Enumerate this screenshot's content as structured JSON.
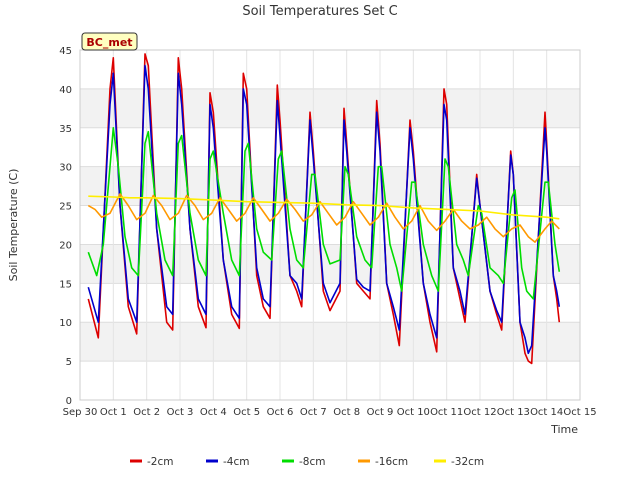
{
  "chart_data": {
    "type": "line",
    "title": "Soil Temperatures Set C",
    "xlabel": "Time",
    "ylabel": "Soil Temperature (C)",
    "badge": "BC_met",
    "xlim": [
      0,
      15
    ],
    "ylim": [
      0,
      45
    ],
    "x_ticks": [
      {
        "v": 0,
        "label": "Sep 30"
      },
      {
        "v": 1,
        "label": "Oct 1"
      },
      {
        "v": 2,
        "label": "Oct 2"
      },
      {
        "v": 3,
        "label": "Oct 3"
      },
      {
        "v": 4,
        "label": "Oct 4"
      },
      {
        "v": 5,
        "label": "Oct 5"
      },
      {
        "v": 6,
        "label": "Oct 6"
      },
      {
        "v": 7,
        "label": "Oct 7"
      },
      {
        "v": 8,
        "label": "Oct 8"
      },
      {
        "v": 9,
        "label": "Oct 9"
      },
      {
        "v": 10,
        "label": "Oct 10"
      },
      {
        "v": 11,
        "label": "Oct 11"
      },
      {
        "v": 12,
        "label": "Oct 12"
      },
      {
        "v": 13,
        "label": "Oct 13"
      },
      {
        "v": 14,
        "label": "Oct 14"
      },
      {
        "v": 15,
        "label": "Oct 15"
      }
    ],
    "y_ticks": [
      0,
      5,
      10,
      15,
      20,
      25,
      30,
      35,
      40,
      45
    ],
    "grid": true,
    "legend_position": "bottom",
    "series": [
      {
        "name": "-2cm",
        "color": "#dd0000",
        "points": [
          [
            0.25,
            13
          ],
          [
            0.55,
            8
          ],
          [
            0.9,
            40
          ],
          [
            1.0,
            44
          ],
          [
            1.2,
            25
          ],
          [
            1.45,
            12
          ],
          [
            1.7,
            8.5
          ],
          [
            1.95,
            44.5
          ],
          [
            2.05,
            43
          ],
          [
            2.3,
            22
          ],
          [
            2.6,
            10
          ],
          [
            2.78,
            9
          ],
          [
            2.95,
            44
          ],
          [
            3.05,
            40
          ],
          [
            3.3,
            22
          ],
          [
            3.55,
            12
          ],
          [
            3.78,
            9.3
          ],
          [
            3.9,
            39.5
          ],
          [
            4.0,
            37
          ],
          [
            4.3,
            18
          ],
          [
            4.55,
            11
          ],
          [
            4.78,
            9.2
          ],
          [
            4.9,
            42
          ],
          [
            5.0,
            40
          ],
          [
            5.3,
            16
          ],
          [
            5.5,
            12
          ],
          [
            5.7,
            10.5
          ],
          [
            5.92,
            40.5
          ],
          [
            6.0,
            36
          ],
          [
            6.3,
            16
          ],
          [
            6.5,
            14
          ],
          [
            6.65,
            12
          ],
          [
            6.9,
            37
          ],
          [
            7.0,
            32
          ],
          [
            7.3,
            14
          ],
          [
            7.5,
            11.5
          ],
          [
            7.8,
            14
          ],
          [
            7.92,
            37.5
          ],
          [
            8.0,
            33
          ],
          [
            8.3,
            15
          ],
          [
            8.5,
            14
          ],
          [
            8.7,
            13
          ],
          [
            8.9,
            38.5
          ],
          [
            9.0,
            33
          ],
          [
            9.2,
            15
          ],
          [
            9.4,
            11
          ],
          [
            9.58,
            7
          ],
          [
            9.9,
            36
          ],
          [
            10.0,
            32
          ],
          [
            10.3,
            15
          ],
          [
            10.5,
            10
          ],
          [
            10.7,
            6.2
          ],
          [
            10.92,
            40
          ],
          [
            11.0,
            38
          ],
          [
            11.2,
            17
          ],
          [
            11.4,
            13
          ],
          [
            11.55,
            10
          ],
          [
            11.9,
            29
          ],
          [
            12.0,
            25
          ],
          [
            12.3,
            14
          ],
          [
            12.5,
            11
          ],
          [
            12.65,
            9
          ],
          [
            12.92,
            32
          ],
          [
            13.0,
            29
          ],
          [
            13.2,
            10
          ],
          [
            13.35,
            6
          ],
          [
            13.45,
            5
          ],
          [
            13.55,
            4.7
          ],
          [
            13.95,
            37
          ],
          [
            14.0,
            33
          ],
          [
            14.2,
            16
          ],
          [
            14.3,
            13
          ],
          [
            14.38,
            10
          ]
        ]
      },
      {
        "name": "-4cm",
        "color": "#0000cc",
        "points": [
          [
            0.25,
            14.5
          ],
          [
            0.55,
            10
          ],
          [
            0.9,
            38
          ],
          [
            1.0,
            42
          ],
          [
            1.2,
            25
          ],
          [
            1.45,
            13
          ],
          [
            1.7,
            10
          ],
          [
            1.95,
            43
          ],
          [
            2.05,
            40
          ],
          [
            2.3,
            22
          ],
          [
            2.6,
            12
          ],
          [
            2.78,
            11
          ],
          [
            2.95,
            42
          ],
          [
            3.05,
            38
          ],
          [
            3.3,
            22
          ],
          [
            3.55,
            13
          ],
          [
            3.78,
            11
          ],
          [
            3.9,
            38
          ],
          [
            4.0,
            35
          ],
          [
            4.3,
            18
          ],
          [
            4.55,
            12
          ],
          [
            4.78,
            10.5
          ],
          [
            4.9,
            40
          ],
          [
            5.0,
            38
          ],
          [
            5.3,
            17
          ],
          [
            5.5,
            13
          ],
          [
            5.7,
            12
          ],
          [
            5.92,
            38.5
          ],
          [
            6.0,
            34
          ],
          [
            6.3,
            16
          ],
          [
            6.5,
            15
          ],
          [
            6.65,
            13
          ],
          [
            6.9,
            36
          ],
          [
            7.0,
            31
          ],
          [
            7.3,
            15
          ],
          [
            7.5,
            12.5
          ],
          [
            7.8,
            15
          ],
          [
            7.92,
            36
          ],
          [
            8.0,
            32
          ],
          [
            8.3,
            15.5
          ],
          [
            8.5,
            14.5
          ],
          [
            8.7,
            14
          ],
          [
            8.9,
            37
          ],
          [
            9.0,
            32
          ],
          [
            9.2,
            15
          ],
          [
            9.4,
            12
          ],
          [
            9.58,
            9
          ],
          [
            9.9,
            35
          ],
          [
            10.0,
            31
          ],
          [
            10.3,
            15
          ],
          [
            10.5,
            11
          ],
          [
            10.7,
            8
          ],
          [
            10.92,
            38
          ],
          [
            11.0,
            36
          ],
          [
            11.2,
            17
          ],
          [
            11.4,
            14
          ],
          [
            11.55,
            11
          ],
          [
            11.9,
            28.5
          ],
          [
            12.0,
            25
          ],
          [
            12.3,
            14
          ],
          [
            12.5,
            11.5
          ],
          [
            12.65,
            10
          ],
          [
            12.92,
            31.5
          ],
          [
            13.0,
            29
          ],
          [
            13.2,
            10
          ],
          [
            13.35,
            8
          ],
          [
            13.45,
            6
          ],
          [
            13.55,
            7
          ],
          [
            13.95,
            35
          ],
          [
            14.0,
            32
          ],
          [
            14.2,
            16
          ],
          [
            14.3,
            14
          ],
          [
            14.38,
            12
          ]
        ]
      },
      {
        "name": "-8cm",
        "color": "#00dd00",
        "points": [
          [
            0.25,
            19
          ],
          [
            0.5,
            16
          ],
          [
            0.7,
            20
          ],
          [
            0.9,
            30
          ],
          [
            1.0,
            35
          ],
          [
            1.15,
            30
          ],
          [
            1.35,
            21
          ],
          [
            1.55,
            17
          ],
          [
            1.75,
            16
          ],
          [
            1.95,
            33
          ],
          [
            2.05,
            34.5
          ],
          [
            2.3,
            24
          ],
          [
            2.55,
            18
          ],
          [
            2.78,
            16
          ],
          [
            2.95,
            33
          ],
          [
            3.05,
            34
          ],
          [
            3.3,
            24
          ],
          [
            3.55,
            18
          ],
          [
            3.78,
            16
          ],
          [
            3.9,
            31
          ],
          [
            4.0,
            32
          ],
          [
            4.3,
            24
          ],
          [
            4.55,
            18
          ],
          [
            4.78,
            16
          ],
          [
            4.95,
            32
          ],
          [
            5.05,
            33
          ],
          [
            5.3,
            22
          ],
          [
            5.5,
            19
          ],
          [
            5.75,
            18
          ],
          [
            5.95,
            31
          ],
          [
            6.05,
            32
          ],
          [
            6.3,
            22
          ],
          [
            6.5,
            18
          ],
          [
            6.7,
            17
          ],
          [
            6.95,
            29
          ],
          [
            7.05,
            29
          ],
          [
            7.3,
            20
          ],
          [
            7.5,
            17.5
          ],
          [
            7.8,
            18
          ],
          [
            7.95,
            30
          ],
          [
            8.05,
            29
          ],
          [
            8.3,
            21
          ],
          [
            8.55,
            18
          ],
          [
            8.75,
            17
          ],
          [
            8.95,
            30
          ],
          [
            9.05,
            30
          ],
          [
            9.3,
            20
          ],
          [
            9.5,
            17
          ],
          [
            9.65,
            14
          ],
          [
            9.95,
            28
          ],
          [
            10.05,
            28
          ],
          [
            10.3,
            20
          ],
          [
            10.55,
            16
          ],
          [
            10.75,
            14
          ],
          [
            10.95,
            31
          ],
          [
            11.05,
            30
          ],
          [
            11.3,
            20
          ],
          [
            11.5,
            18
          ],
          [
            11.65,
            16
          ],
          [
            11.95,
            25
          ],
          [
            12.05,
            24
          ],
          [
            12.3,
            17
          ],
          [
            12.55,
            16
          ],
          [
            12.7,
            15
          ],
          [
            12.95,
            26
          ],
          [
            13.05,
            27
          ],
          [
            13.25,
            17
          ],
          [
            13.4,
            14
          ],
          [
            13.6,
            13
          ],
          [
            13.95,
            28
          ],
          [
            14.05,
            28
          ],
          [
            14.25,
            20
          ],
          [
            14.38,
            16.5
          ]
        ]
      },
      {
        "name": "-16cm",
        "color": "#ff9900",
        "points": [
          [
            0.25,
            25
          ],
          [
            0.45,
            24.5
          ],
          [
            0.65,
            23.5
          ],
          [
            0.9,
            24
          ],
          [
            1.2,
            26.5
          ],
          [
            1.45,
            25
          ],
          [
            1.7,
            23.2
          ],
          [
            1.95,
            24
          ],
          [
            2.2,
            26.3
          ],
          [
            2.45,
            25
          ],
          [
            2.7,
            23.2
          ],
          [
            2.95,
            24
          ],
          [
            3.2,
            26.3
          ],
          [
            3.45,
            25
          ],
          [
            3.7,
            23.2
          ],
          [
            3.95,
            24
          ],
          [
            4.2,
            26
          ],
          [
            4.45,
            24.5
          ],
          [
            4.7,
            23
          ],
          [
            4.95,
            24
          ],
          [
            5.2,
            26
          ],
          [
            5.45,
            24.5
          ],
          [
            5.7,
            23
          ],
          [
            5.95,
            24
          ],
          [
            6.2,
            25.8
          ],
          [
            6.45,
            24.5
          ],
          [
            6.7,
            23
          ],
          [
            6.95,
            23.8
          ],
          [
            7.2,
            25.5
          ],
          [
            7.45,
            24
          ],
          [
            7.7,
            22.5
          ],
          [
            7.95,
            23.5
          ],
          [
            8.2,
            25.5
          ],
          [
            8.45,
            24
          ],
          [
            8.7,
            22.5
          ],
          [
            8.95,
            23.5
          ],
          [
            9.2,
            25.3
          ],
          [
            9.45,
            23.5
          ],
          [
            9.7,
            22
          ],
          [
            9.95,
            23
          ],
          [
            10.2,
            25
          ],
          [
            10.45,
            23
          ],
          [
            10.7,
            21.8
          ],
          [
            10.95,
            23
          ],
          [
            11.2,
            24.5
          ],
          [
            11.45,
            23
          ],
          [
            11.7,
            22
          ],
          [
            11.95,
            22.5
          ],
          [
            12.2,
            23.5
          ],
          [
            12.45,
            22
          ],
          [
            12.7,
            21
          ],
          [
            12.95,
            22
          ],
          [
            13.2,
            22.5
          ],
          [
            13.45,
            21
          ],
          [
            13.65,
            20.3
          ],
          [
            13.95,
            22
          ],
          [
            14.15,
            23
          ],
          [
            14.38,
            22
          ]
        ]
      },
      {
        "name": "-32cm",
        "color": "#ffee00",
        "points": [
          [
            0.25,
            26.2
          ],
          [
            1.0,
            26.1
          ],
          [
            1.5,
            26.0
          ],
          [
            2.0,
            26.0
          ],
          [
            3.0,
            25.9
          ],
          [
            4.0,
            25.7
          ],
          [
            5.0,
            25.5
          ],
          [
            6.0,
            25.4
          ],
          [
            7.0,
            25.3
          ],
          [
            8.0,
            25.1
          ],
          [
            9.0,
            25.0
          ],
          [
            10.0,
            24.7
          ],
          [
            11.0,
            24.5
          ],
          [
            12.0,
            24.3
          ],
          [
            13.0,
            23.8
          ],
          [
            14.0,
            23.5
          ],
          [
            14.38,
            23.3
          ]
        ]
      }
    ]
  }
}
